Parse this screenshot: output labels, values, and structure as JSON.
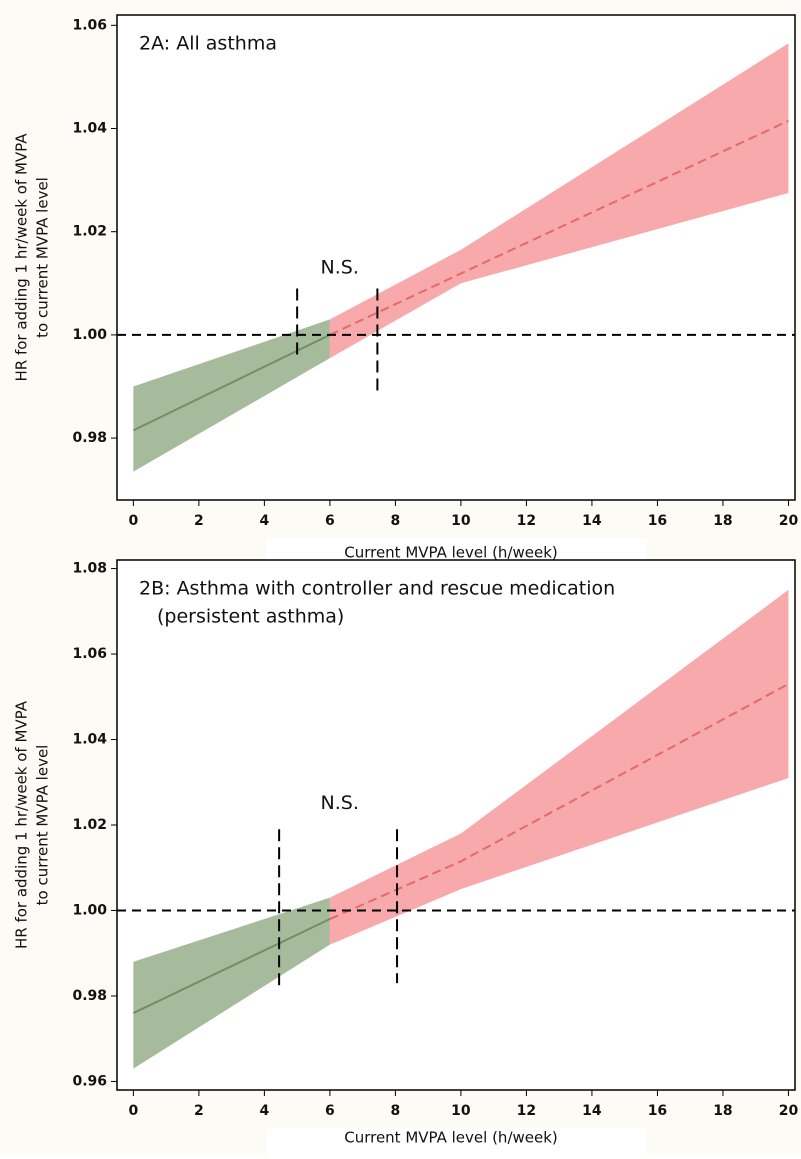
{
  "chart_data": [
    {
      "type": "band-line",
      "title_lines": [
        "2A: All asthma"
      ],
      "xlabel": "Current MVPA level (h/week)",
      "ylabel_lines": [
        "HR for adding 1 hr/week of MVPA",
        "to current MVPA level"
      ],
      "xlim": [
        -0.5,
        20.2
      ],
      "ylim": [
        0.968,
        1.062
      ],
      "xticks": [
        0,
        2,
        4,
        6,
        8,
        10,
        12,
        14,
        16,
        18,
        20
      ],
      "yticks": [
        0.98,
        {
          "value": 1,
          "label": "1.00"
        },
        1.02,
        1.04,
        1.06
      ],
      "series": [
        {
          "color": "#6f9160",
          "band_color": "#a6bb9c",
          "dash": false,
          "x": [
            0,
            6
          ],
          "values": [
            0.9815,
            1.0
          ],
          "lower": [
            0.9735,
            0.9955
          ],
          "upper": [
            0.99,
            1.003
          ]
        },
        {
          "color": "#e36a66",
          "band_color": "#f8a9ab",
          "dash": true,
          "x": [
            6,
            10,
            20
          ],
          "values": [
            1.0,
            1.0119,
            1.0415
          ],
          "lower": [
            0.9955,
            1.01,
            1.0275
          ],
          "upper": [
            1.003,
            1.0165,
            1.0565
          ]
        }
      ],
      "hline": 1,
      "segments": [
        {
          "x": 5,
          "y": [
            1.009,
            0.9955
          ]
        },
        {
          "x": 7.45,
          "y": [
            1.009,
            0.989
          ]
        }
      ],
      "annotations": [
        {
          "text": "N.S.",
          "x": 6.3,
          "y": 1.013
        }
      ]
    },
    {
      "type": "band-line",
      "title_lines": [
        "2B: Asthma with controller and rescue medication",
        "(persistent asthma)"
      ],
      "xlabel": "Current MVPA level (h/week)",
      "ylabel_lines": [
        "HR for adding 1 hr/week of MVPA",
        "to current MVPA level"
      ],
      "xlim": [
        -0.5,
        20.2
      ],
      "ylim": [
        0.958,
        1.082
      ],
      "xticks": [
        0,
        2,
        4,
        6,
        8,
        10,
        12,
        14,
        16,
        18,
        20
      ],
      "yticks": [
        0.96,
        0.98,
        {
          "value": 1,
          "label": "1.00"
        },
        1.02,
        1.04,
        1.06,
        1.08
      ],
      "series": [
        {
          "color": "#6f9160",
          "band_color": "#a6bb9c",
          "dash": false,
          "x": [
            0,
            6
          ],
          "values": [
            0.976,
            0.998
          ],
          "lower": [
            0.963,
            0.992
          ],
          "upper": [
            0.988,
            1.003
          ]
        },
        {
          "color": "#e36a66",
          "band_color": "#f8a9ab",
          "dash": true,
          "x": [
            6,
            10,
            20
          ],
          "values": [
            0.998,
            1.0115,
            1.053
          ],
          "lower": [
            0.992,
            1.005,
            1.031
          ],
          "upper": [
            1.003,
            1.018,
            1.075
          ]
        }
      ],
      "hline": 1,
      "segments": [
        {
          "x": 4.45,
          "y": [
            1.019,
            0.982
          ]
        },
        {
          "x": 8.05,
          "y": [
            1.019,
            0.983
          ]
        }
      ],
      "annotations": [
        {
          "text": "N.S.",
          "x": 6.3,
          "y": 1.025
        }
      ]
    }
  ]
}
